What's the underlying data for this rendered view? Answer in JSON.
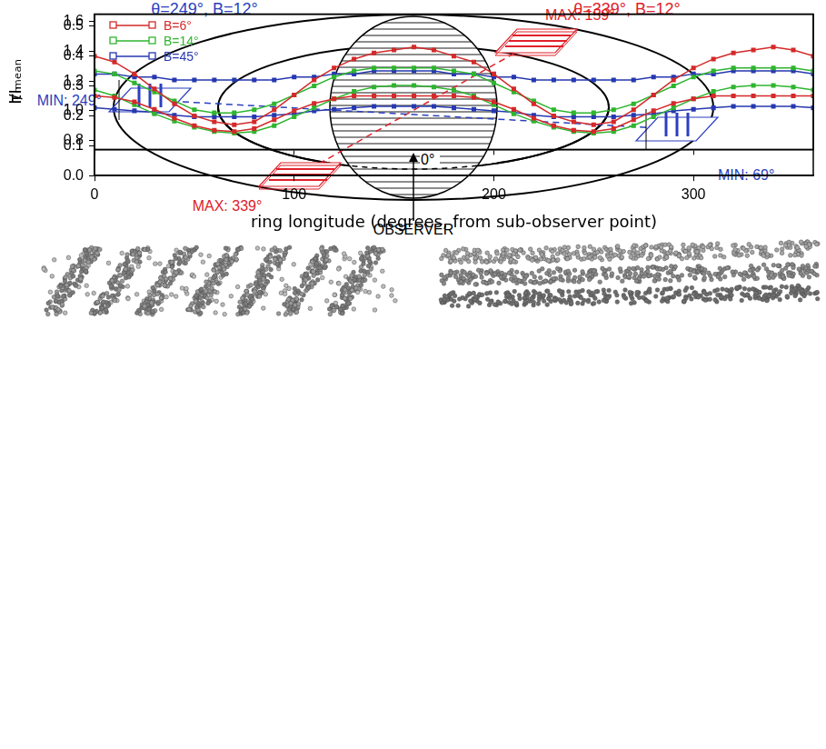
{
  "diagram": {
    "labels": [
      {
        "text": "MAX: 159°",
        "color": "#e0202a"
      },
      {
        "text": "MIN: 249°",
        "color": "#2b3fc0"
      },
      {
        "text": "MIN: 69°",
        "color": "#2b3fc0"
      },
      {
        "text": "MAX: 339°",
        "color": "#e0202a"
      }
    ],
    "zero_label": "0°",
    "observer": "OBSERVER"
  },
  "panels": [
    {
      "caption": "θ=249°, B=12°",
      "color": "#2b3fc0"
    },
    {
      "caption": "θ=339°, B=12°",
      "color": "#e0202a"
    }
  ],
  "chart_data": [
    {
      "type": "line",
      "y_label": "I/Iₘₑₐₙ",
      "x": [
        0,
        10,
        20,
        30,
        40,
        50,
        60,
        70,
        80,
        90,
        100,
        110,
        120,
        130,
        140,
        150,
        160,
        170,
        180,
        190,
        200,
        210,
        220,
        230,
        240,
        250,
        260,
        270,
        280,
        290,
        300,
        310,
        320,
        330,
        340,
        350,
        360
      ],
      "series": [
        {
          "name": "B=6°",
          "color": "#d42a2a",
          "marker": "square",
          "line_style": "solid",
          "values": [
            1.1,
            1.09,
            1.06,
            1.01,
            0.95,
            0.9,
            0.87,
            0.86,
            0.88,
            0.94,
            1.0,
            1.05,
            1.08,
            1.1,
            1.1,
            1.1,
            1.1,
            1.1,
            1.1,
            1.09,
            1.06,
            1.01,
            0.95,
            0.9,
            0.87,
            0.86,
            0.88,
            0.94,
            1.0,
            1.05,
            1.08,
            1.1,
            1.1,
            1.1,
            1.1,
            1.1,
            1.1
          ]
        },
        {
          "name": "B=14°",
          "color": "#2fb52f",
          "marker": "square",
          "line_style": "solid",
          "values": [
            1.14,
            1.1,
            1.04,
            0.98,
            0.93,
            0.89,
            0.86,
            0.85,
            0.86,
            0.9,
            0.96,
            1.02,
            1.08,
            1.13,
            1.16,
            1.17,
            1.17,
            1.16,
            1.14,
            1.1,
            1.04,
            0.98,
            0.93,
            0.89,
            0.86,
            0.85,
            0.86,
            0.9,
            0.96,
            1.02,
            1.08,
            1.13,
            1.16,
            1.17,
            1.17,
            1.16,
            1.14
          ]
        },
        {
          "name": "B=45°",
          "color": "#2638b0",
          "marker": "square",
          "line_style": "solid",
          "values": [
            1.02,
            1.01,
            1.0,
            0.99,
            0.97,
            0.96,
            0.96,
            0.96,
            0.96,
            0.97,
            0.98,
            1.0,
            1.01,
            1.02,
            1.03,
            1.03,
            1.03,
            1.03,
            1.02,
            1.01,
            1.0,
            0.99,
            0.97,
            0.96,
            0.96,
            0.96,
            0.96,
            0.97,
            0.98,
            1.0,
            1.01,
            1.02,
            1.03,
            1.03,
            1.03,
            1.03,
            1.02
          ]
        }
      ],
      "xlim": [
        0,
        360
      ],
      "xticks": [
        0,
        100,
        200,
        300
      ],
      "ylim": [
        0.74,
        1.65
      ],
      "yticks": [
        0.8,
        {
          "value": 1,
          "label": "1.0"
        },
        1.2,
        1.4,
        1.6
      ],
      "tick_labels": "y",
      "grid": false,
      "legend": "upper left"
    },
    {
      "type": "line",
      "x_label": "ring longitude (degrees, from sub-observer point)",
      "y_label": "τₙ",
      "x": [
        0,
        10,
        20,
        30,
        40,
        50,
        60,
        70,
        80,
        90,
        100,
        110,
        120,
        130,
        140,
        150,
        160,
        170,
        180,
        190,
        200,
        210,
        220,
        230,
        240,
        250,
        260,
        270,
        280,
        290,
        300,
        310,
        320,
        330,
        340,
        350,
        360
      ],
      "series": [
        {
          "name": "B=6°",
          "color": "#d42a2a",
          "marker": "square",
          "line_style": "solid",
          "values": [
            0.4,
            0.38,
            0.34,
            0.29,
            0.24,
            0.2,
            0.18,
            0.17,
            0.18,
            0.22,
            0.27,
            0.32,
            0.36,
            0.39,
            0.41,
            0.42,
            0.43,
            0.42,
            0.4,
            0.38,
            0.34,
            0.29,
            0.24,
            0.2,
            0.18,
            0.17,
            0.18,
            0.22,
            0.27,
            0.32,
            0.36,
            0.39,
            0.41,
            0.42,
            0.43,
            0.42,
            0.4
          ]
        },
        {
          "name": "B=14°",
          "color": "#2fb52f",
          "marker": "square",
          "line_style": "solid",
          "values": [
            0.35,
            0.34,
            0.31,
            0.28,
            0.25,
            0.22,
            0.21,
            0.21,
            0.22,
            0.24,
            0.27,
            0.3,
            0.33,
            0.35,
            0.36,
            0.36,
            0.36,
            0.36,
            0.35,
            0.34,
            0.31,
            0.28,
            0.25,
            0.22,
            0.21,
            0.21,
            0.22,
            0.24,
            0.27,
            0.3,
            0.33,
            0.35,
            0.36,
            0.36,
            0.36,
            0.36,
            0.35
          ]
        },
        {
          "name": "B=45°",
          "color": "#2638b0",
          "marker": "square",
          "line_style": "solid",
          "values": [
            0.34,
            0.34,
            0.33,
            0.33,
            0.32,
            0.32,
            0.32,
            0.32,
            0.32,
            0.32,
            0.33,
            0.33,
            0.34,
            0.34,
            0.35,
            0.35,
            0.35,
            0.35,
            0.34,
            0.34,
            0.33,
            0.33,
            0.32,
            0.32,
            0.32,
            0.32,
            0.32,
            0.32,
            0.33,
            0.33,
            0.34,
            0.34,
            0.35,
            0.35,
            0.35,
            0.35,
            0.34
          ]
        }
      ],
      "xlim": [
        0,
        360
      ],
      "xticks": [
        0,
        100,
        200,
        300
      ],
      "ylim": [
        0,
        0.54
      ],
      "yticks": [
        {
          "value": 0,
          "label": "0.0"
        },
        0.1,
        0.2,
        0.3,
        0.4,
        0.5
      ],
      "grid": false
    }
  ]
}
